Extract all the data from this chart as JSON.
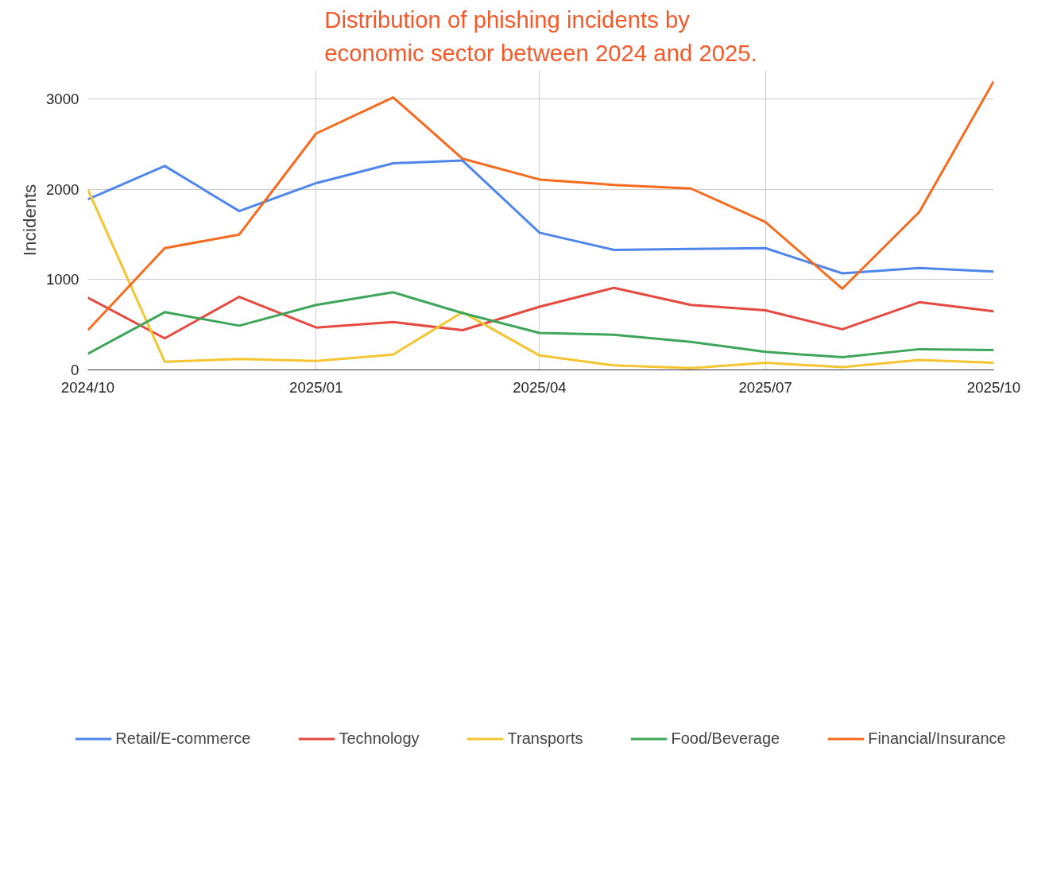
{
  "chart_data": {
    "type": "line",
    "title": "Distribution of phishing incidents by\neconomic sector between 2024 and 2025.",
    "ylabel": "Incidents",
    "x": [
      "2024-10",
      "2024-11",
      "2024-12",
      "2025-01",
      "2025-02",
      "2025-03",
      "2025-04",
      "2025-05",
      "2025-06",
      "2025-07",
      "2025-08",
      "2025-09",
      "2025-10"
    ],
    "series": [
      {
        "name": "Retail/E-commerce",
        "color": "#4f86ec",
        "values": [
          1890,
          2260,
          1760,
          2070,
          2290,
          2320,
          1520,
          1330,
          1340,
          1350,
          1070,
          1130,
          1090
        ]
      },
      {
        "name": "Technology",
        "color": "#e5493f",
        "values": [
          800,
          350,
          810,
          470,
          530,
          440,
          700,
          910,
          720,
          660,
          450,
          750,
          650
        ]
      },
      {
        "name": "Transports",
        "color": "#f4c431",
        "values": [
          2000,
          90,
          120,
          100,
          170,
          640,
          160,
          50,
          20,
          80,
          30,
          110,
          80
        ]
      },
      {
        "name": "Food/Beverage",
        "color": "#3ea65a",
        "values": [
          180,
          640,
          490,
          720,
          860,
          630,
          410,
          390,
          310,
          200,
          140,
          230,
          220
        ]
      },
      {
        "name": "Financial/Insurance",
        "color": "#f56a1d",
        "values": [
          440,
          1350,
          1500,
          2620,
          3020,
          2340,
          2110,
          2050,
          2010,
          1640,
          900,
          1750,
          3200
        ]
      }
    ],
    "xlim": [
      "2024-10",
      "2025-10"
    ],
    "xticks": [
      {
        "value": "2024-10",
        "label": "2024/10"
      },
      {
        "value": "2025-01",
        "label": "2025/01"
      },
      {
        "value": "2025-04",
        "label": "2025/04"
      },
      {
        "value": "2025-07",
        "label": "2025/07"
      },
      {
        "value": "2025-10",
        "label": "2025/10"
      }
    ],
    "ylim": [
      0,
      3320
    ],
    "yticks": [
      0,
      1000,
      2000,
      3000
    ],
    "grid": true,
    "legend": "bottom",
    "marker": "none",
    "line_style": "solid"
  }
}
